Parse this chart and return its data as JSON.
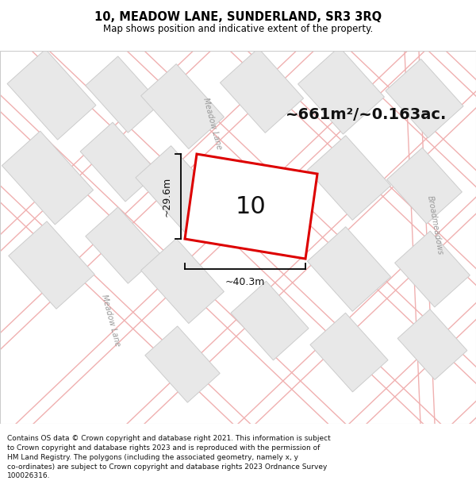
{
  "title_line1": "10, MEADOW LANE, SUNDERLAND, SR3 3RQ",
  "title_line2": "Map shows position and indicative extent of the property.",
  "footer_text": "Contains OS data © Crown copyright and database right 2021. This information is subject to Crown copyright and database rights 2023 and is reproduced with the permission of HM Land Registry. The polygons (including the associated geometry, namely x, y co-ordinates) are subject to Crown copyright and database rights 2023 Ordnance Survey 100026316.",
  "map_bg": "#ffffff",
  "plot_fill": "#ffffff",
  "plot_stroke": "#dd0000",
  "road_color": "#f0b0b0",
  "road_lw": 1.0,
  "building_fill": "#e8e8e8",
  "building_stroke": "#cccccc",
  "label_area": "~661m²/~0.163ac.",
  "label_number": "10",
  "label_width": "~40.3m",
  "label_height": "~29.6m",
  "road_label_meadow_upper": "Meadow Lane",
  "road_label_meadow_lower": "Meadow Lane",
  "road_label_broad": "Broadmeadows",
  "annotation_color": "#000000",
  "label_color": "#000000"
}
